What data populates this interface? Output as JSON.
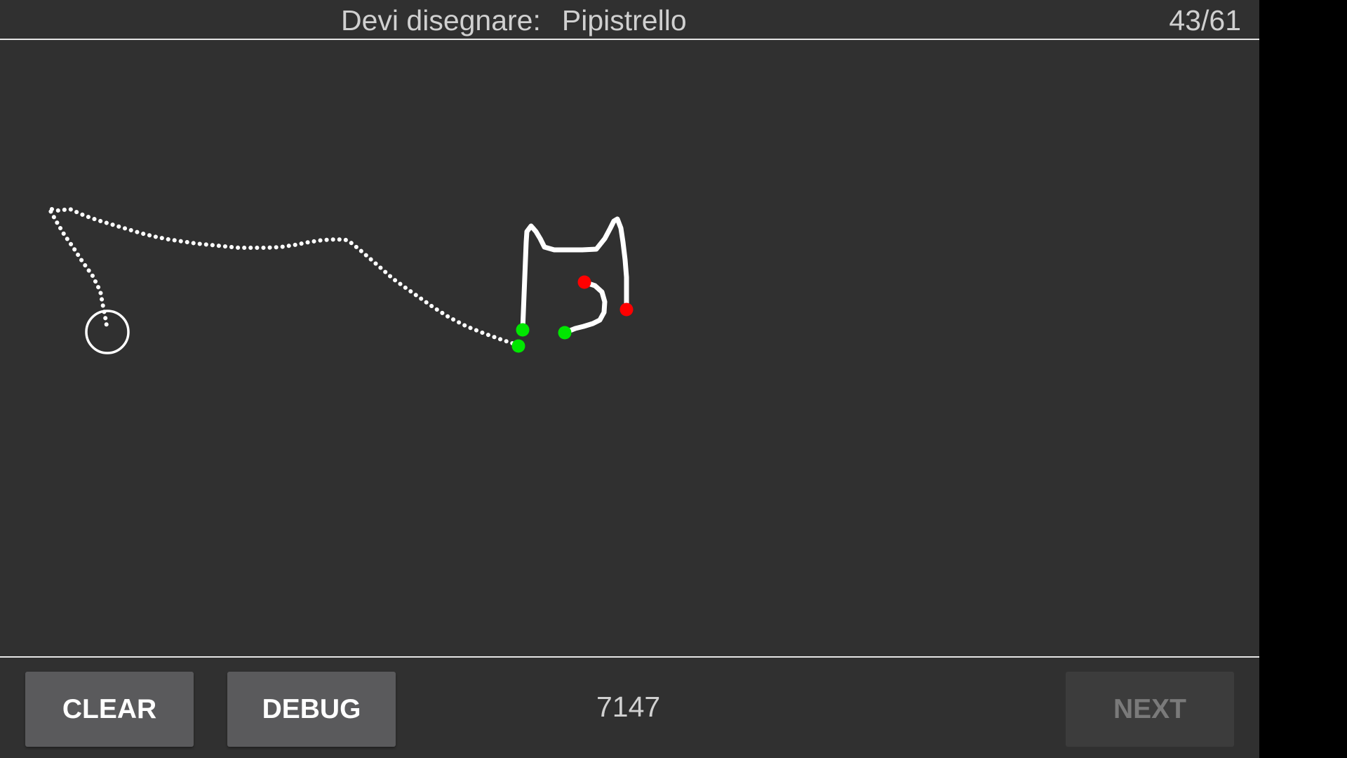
{
  "header": {
    "prompt_label": "Devi disegnare:",
    "prompt_word": "Pipistrello",
    "counter": "43/61"
  },
  "footer": {
    "clear_label": "CLEAR",
    "debug_label": "DEBUG",
    "score": "7147",
    "next_label": "NEXT"
  },
  "colors": {
    "background": "#303030",
    "stroke": "#ffffff",
    "start_marker": "#00e600",
    "end_marker": "#ff0000",
    "button": "#5a5a5c",
    "button_disabled": "#3c3c3c"
  },
  "icons": {
    "cursor": "cursor-ring-icon"
  }
}
